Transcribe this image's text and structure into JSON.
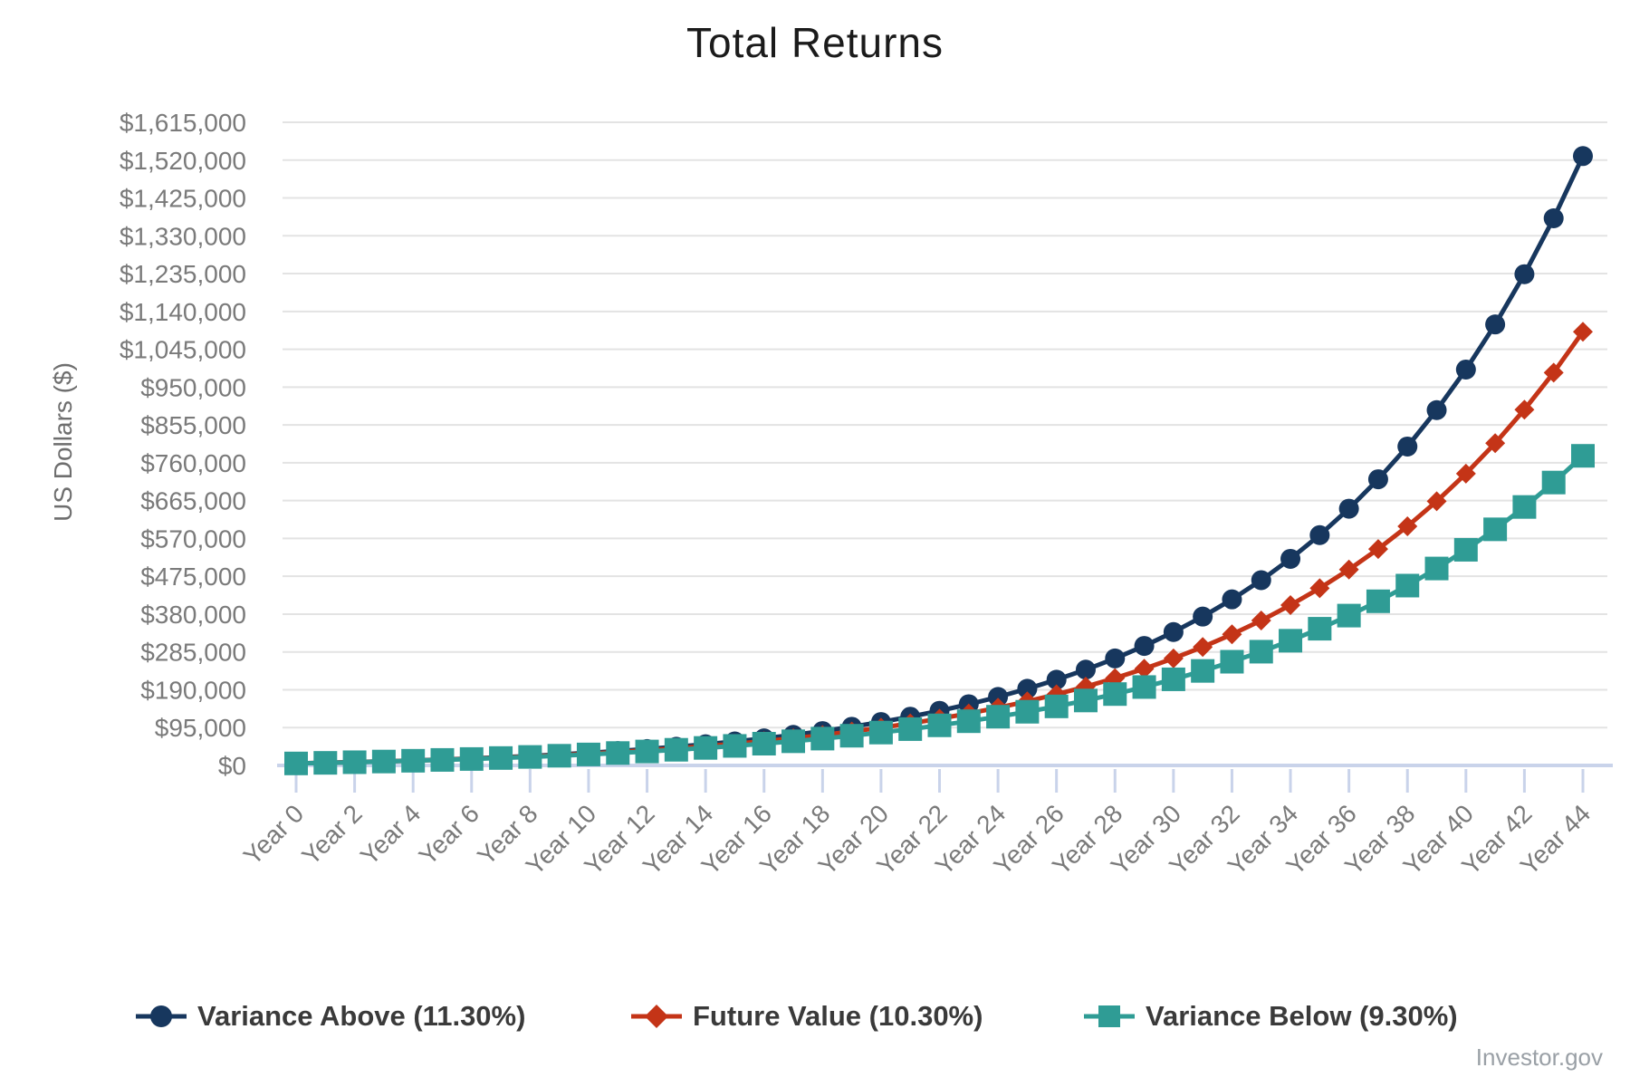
{
  "title": "Total Returns",
  "watermark": "Investor.gov",
  "y_axis": {
    "title": "US Dollars ($)",
    "tick_labels": [
      "$0",
      "$95,000",
      "$190,000",
      "$285,000",
      "$380,000",
      "$475,000",
      "$570,000",
      "$665,000",
      "$760,000",
      "$855,000",
      "$950,000",
      "$1,045,000",
      "$1,140,000",
      "$1,235,000",
      "$1,330,000",
      "$1,425,000",
      "$1,520,000",
      "$1,615,000"
    ],
    "tick_step": 95000,
    "min": 0,
    "max": 1615000
  },
  "x_axis": {
    "tick_years": [
      0,
      2,
      4,
      6,
      8,
      10,
      12,
      14,
      16,
      18,
      20,
      22,
      24,
      26,
      28,
      30,
      32,
      34,
      36,
      38,
      40,
      42,
      44
    ],
    "tick_labels": [
      "Year 0",
      "Year 2",
      "Year 4",
      "Year 6",
      "Year 8",
      "Year 10",
      "Year 12",
      "Year 14",
      "Year 16",
      "Year 18",
      "Year 20",
      "Year 22",
      "Year 24",
      "Year 26",
      "Year 28",
      "Year 30",
      "Year 32",
      "Year 34",
      "Year 36",
      "Year 38",
      "Year 40",
      "Year 42",
      "Year 44"
    ]
  },
  "colors": {
    "grid": "#e3e3e3",
    "axis": "#c9d3ea",
    "tick_text": "#7a7a7a",
    "title_text": "#1b1b1b",
    "legend_text": "#3a3a3a",
    "watermark_text": "#9aa0a6"
  },
  "chart_data": {
    "type": "line",
    "title": "Total Returns",
    "xlabel": "",
    "ylabel": "US Dollars ($)",
    "x": [
      0,
      1,
      2,
      3,
      4,
      5,
      6,
      7,
      8,
      9,
      10,
      11,
      12,
      13,
      14,
      15,
      16,
      17,
      18,
      19,
      20,
      21,
      22,
      23,
      24,
      25,
      26,
      27,
      28,
      29,
      30,
      31,
      32,
      33,
      34,
      35,
      36,
      37,
      38,
      39,
      40,
      41,
      42,
      43,
      44
    ],
    "x_tick_prefix": "Year ",
    "ylim": [
      0,
      1615000
    ],
    "y_tick_step": 95000,
    "grid": "horizontal",
    "legend_position": "bottom",
    "series": [
      {
        "name": "Variance Above (11.30%)",
        "rate_pct": 11.3,
        "color": "#17375e",
        "marker": "circle",
        "values": [
          5000,
          6565,
          8307,
          10246,
          12404,
          14806,
          17479,
          20454,
          23765,
          27451,
          31553,
          36119,
          41200,
          46856,
          53151,
          60157,
          67955,
          76634,
          86294,
          97045,
          109011,
          122329,
          137152,
          153650,
          172013,
          192450,
          215197,
          240514,
          268692,
          300054,
          334960,
          373811,
          417052,
          465179,
          518744,
          578362,
          644717,
          718570,
          800768,
          892255,
          994080,
          1107411,
          1233548,
          1373939,
          1530194
        ]
      },
      {
        "name": "Future Value (10.30%)",
        "rate_pct": 10.3,
        "color": "#c43417",
        "marker": "diamond",
        "values": [
          5000,
          6515,
          8186,
          10029,
          12062,
          14304,
          16777,
          19505,
          22514,
          25833,
          29494,
          33532,
          37986,
          42899,
          48318,
          54295,
          60887,
          68158,
          76178,
          85024,
          94782,
          105544,
          117415,
          130509,
          144951,
          160881,
          178452,
          197833,
          219210,
          242789,
          268796,
          297482,
          329123,
          364023,
          402517,
          444976,
          491809,
          543465,
          600442,
          663288,
          732607,
          809066,
          893430,
          986453,
          1089058
        ]
      },
      {
        "name": "Variance Below (9.30%)",
        "rate_pct": 9.3,
        "color": "#2f9c95",
        "marker": "square",
        "values": [
          5000,
          6465,
          8066,
          9816,
          11729,
          13820,
          16105,
          18603,
          21333,
          24317,
          27578,
          31143,
          35039,
          39298,
          43953,
          49041,
          54602,
          60680,
          67323,
          74584,
          82520,
          91194,
          100675,
          111038,
          122365,
          134745,
          148276,
          163066,
          179231,
          196900,
          216212,
          237320,
          260391,
          285607,
          313169,
          343294,
          376220,
          412209,
          451544,
          494538,
          541530,
          592892,
          649031,
          710391,
          777457
        ]
      }
    ]
  }
}
